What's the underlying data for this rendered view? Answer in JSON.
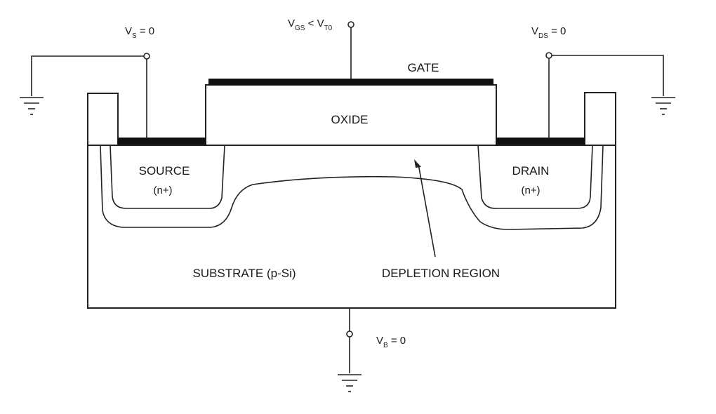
{
  "labels": {
    "vs": {
      "main": "V",
      "sub": "S",
      "rest": " = 0"
    },
    "vgs": {
      "main1": "V",
      "sub1": "GS",
      "mid": " < V",
      "sub2": "T0"
    },
    "vds": {
      "main": "V",
      "sub": "DS",
      "rest": " = 0"
    },
    "vb": {
      "main": "V",
      "sub": "B",
      "rest": " = 0"
    },
    "gate": "GATE",
    "oxide": "OXIDE",
    "source": "SOURCE",
    "source_type": "(n+)",
    "drain": "DRAIN",
    "drain_type": "(n+)",
    "substrate": "SUBSTRATE  (p-Si)",
    "depletion": "DEPLETION REGION"
  },
  "colors": {
    "line": "#222222",
    "metal": "#111111",
    "background": "#ffffff"
  }
}
